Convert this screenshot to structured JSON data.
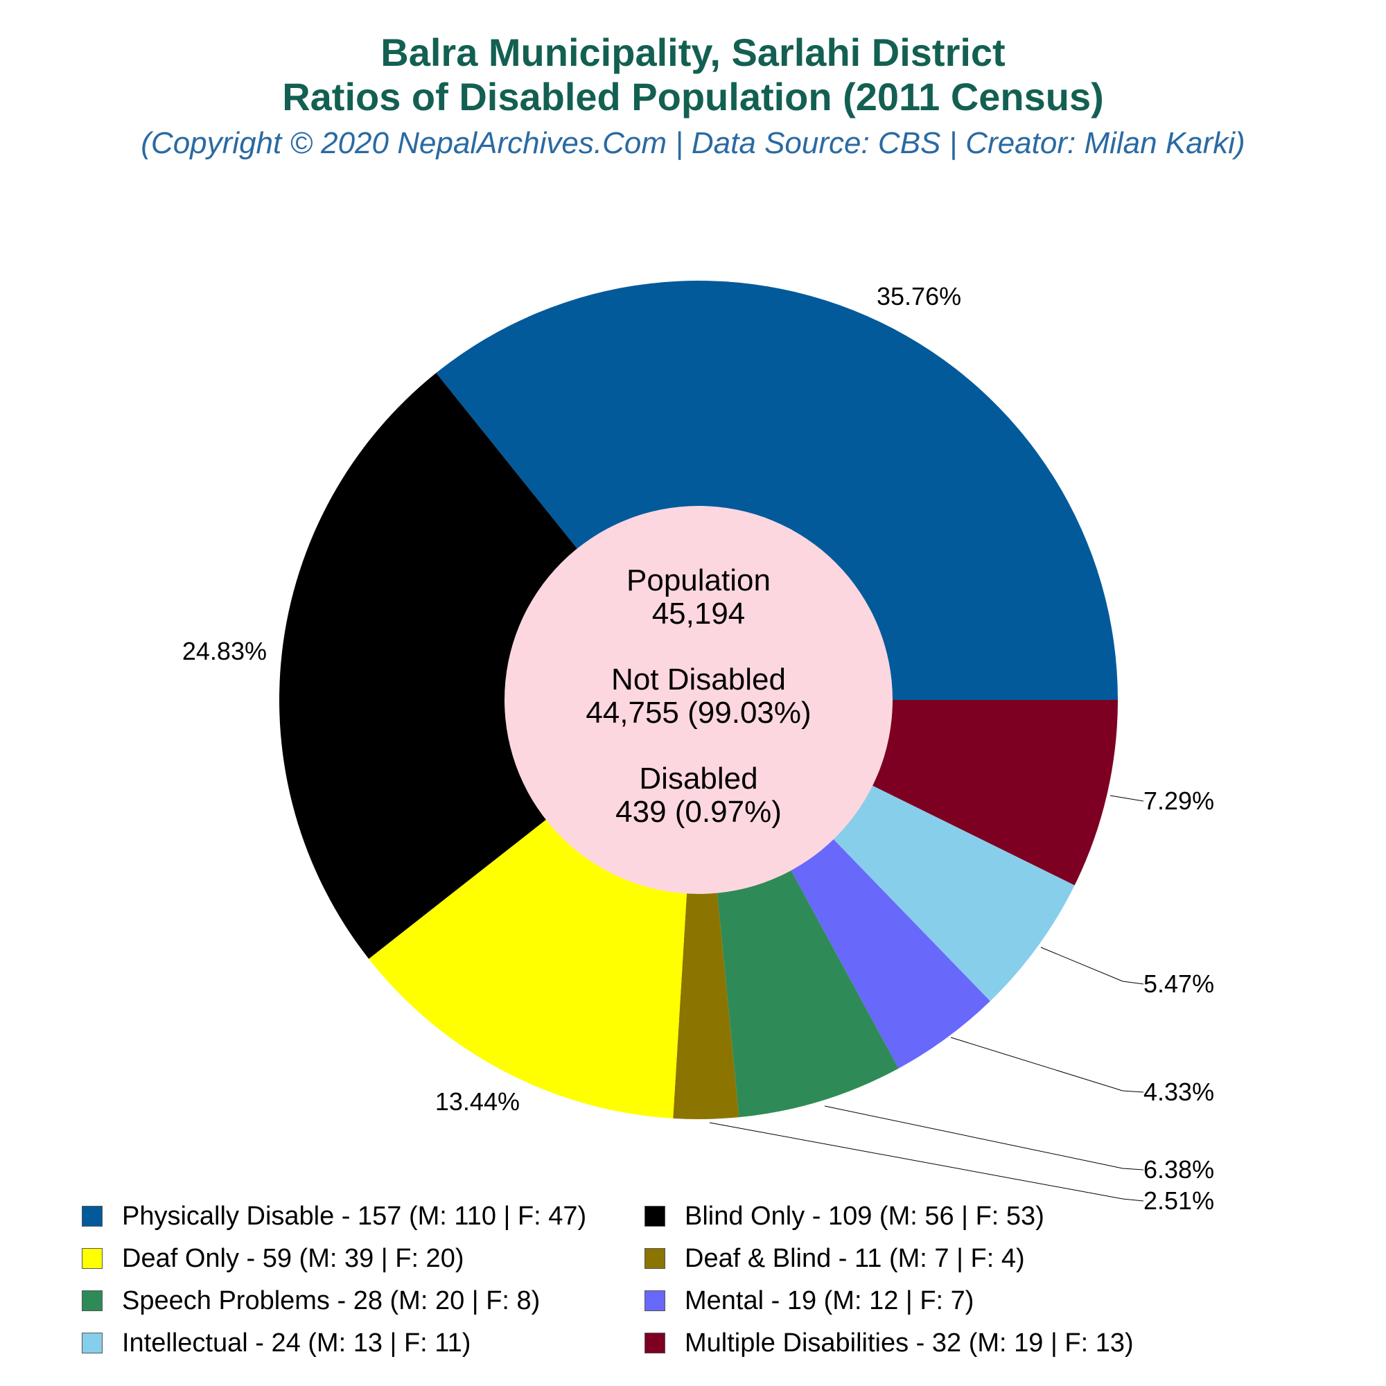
{
  "header": {
    "title_line1": "Balra Municipality, Sarlahi District",
    "title_line2": "Ratios of Disabled Population (2011 Census)",
    "subtitle": "(Copyright © 2020 NepalArchives.Com | Data Source: CBS | Creator: Milan Karki)"
  },
  "center": {
    "population_label": "Population",
    "population_value": "45,194",
    "not_disabled_label": "Not Disabled",
    "not_disabled_value": "44,755 (99.03%)",
    "disabled_label": "Disabled",
    "disabled_value": "439 (0.97%)",
    "fill_color": "#fdd7df"
  },
  "chart_data": {
    "type": "pie",
    "title": "Balra Municipality, Sarlahi District Ratios of Disabled Population (2011 Census)",
    "total_disabled": 439,
    "slices": [
      {
        "label": "Physically Disable",
        "value": 157,
        "male": 110,
        "female": 47,
        "percent_label": "35.76%",
        "color": "#025a9b",
        "legend": "Physically Disable - 157 (M: 110 | F: 47)"
      },
      {
        "label": "Multiple Disabilities",
        "value": 32,
        "male": 19,
        "female": 13,
        "percent_label": "7.29%",
        "color": "#7d0022",
        "legend": "Multiple Disabilities - 32 (M: 19 | F: 13)"
      },
      {
        "label": "Intellectual",
        "value": 24,
        "male": 13,
        "female": 11,
        "percent_label": "5.47%",
        "color": "#87ceeb",
        "legend": "Intellectual - 24 (M: 13 | F: 11)"
      },
      {
        "label": "Mental",
        "value": 19,
        "male": 12,
        "female": 7,
        "percent_label": "4.33%",
        "color": "#6868fb",
        "legend": "Mental - 19 (M: 12 | F: 7)"
      },
      {
        "label": "Speech Problems",
        "value": 28,
        "male": 20,
        "female": 8,
        "percent_label": "6.38%",
        "color": "#2e8b57",
        "legend": "Speech Problems - 28 (M: 20 | F: 8)"
      },
      {
        "label": "Deaf & Blind",
        "value": 11,
        "male": 7,
        "female": 4,
        "percent_label": "2.51%",
        "color": "#8b7500",
        "legend": "Deaf & Blind - 11 (M: 7 | F: 4)"
      },
      {
        "label": "Deaf Only",
        "value": 59,
        "male": 39,
        "female": 20,
        "percent_label": "13.44%",
        "color": "#ffff00",
        "legend": "Deaf Only - 59 (M: 39 | F: 20)"
      },
      {
        "label": "Blind Only",
        "value": 109,
        "male": 56,
        "female": 53,
        "percent_label": "24.83%",
        "color": "#000000",
        "legend": "Blind Only - 109 (M: 56 | F: 53)"
      }
    ],
    "legend_order": [
      "Physically Disable",
      "Blind Only",
      "Deaf Only",
      "Deaf & Blind",
      "Speech Problems",
      "Mental",
      "Intellectual",
      "Multiple Disabilities"
    ]
  }
}
